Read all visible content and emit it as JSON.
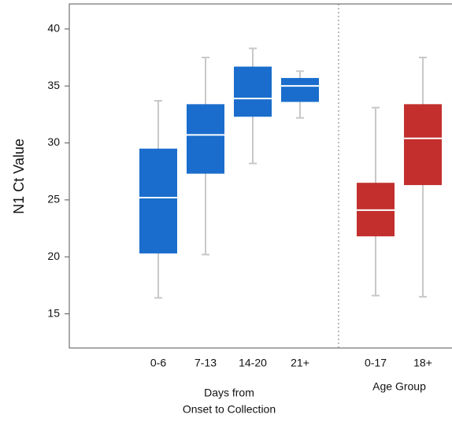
{
  "chart_data": {
    "type": "box",
    "y_label": "N1 Ct Value",
    "ylim": [
      12,
      42.2
    ],
    "yticks": [
      15,
      20,
      25,
      30,
      35,
      40
    ],
    "groups": [
      {
        "label_lines": [
          "Days from",
          "Onset to Collection"
        ],
        "color": "#1a6dcc",
        "categories": [
          "0-6",
          "7-13",
          "14-20",
          "21+"
        ],
        "whisker_low": [
          16.4,
          20.2,
          28.2,
          32.2
        ],
        "q1": [
          20.3,
          27.3,
          32.3,
          33.6
        ],
        "median": [
          25.2,
          30.7,
          33.9,
          35.0
        ],
        "q3": [
          29.5,
          33.4,
          36.7,
          35.7
        ],
        "whisker_high": [
          33.7,
          37.5,
          38.3,
          36.3
        ]
      },
      {
        "label_lines": [
          "Age Group"
        ],
        "color": "#c22f2d",
        "categories": [
          "0-17",
          "18+"
        ],
        "whisker_low": [
          16.6,
          16.5
        ],
        "q1": [
          21.8,
          26.3
        ],
        "median": [
          24.1,
          30.4
        ],
        "q3": [
          26.5,
          33.4
        ],
        "whisker_high": [
          33.1,
          37.5
        ]
      }
    ]
  }
}
